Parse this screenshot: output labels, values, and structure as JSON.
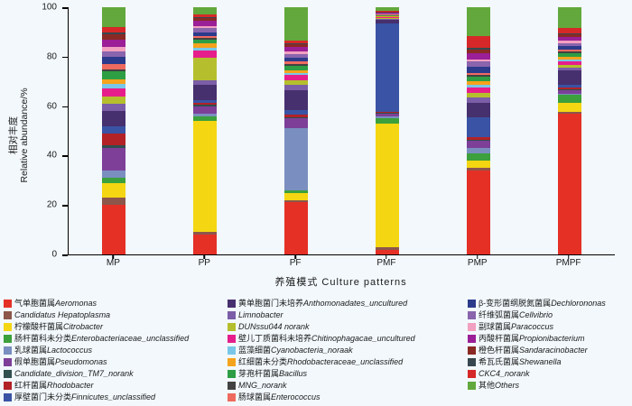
{
  "chart_data": {
    "type": "bar",
    "stacked": true,
    "title": "",
    "xlabel": "养殖模式  Culture patterns",
    "ylabel_zh": "相对丰度",
    "ylabel_en": "Relative abundance/%",
    "ylim": [
      0,
      100
    ],
    "yticks": [
      0,
      20,
      40,
      60,
      80,
      100
    ],
    "grid": false,
    "legend_position": "bottom",
    "legend_columns": [
      9,
      9,
      8
    ],
    "categories": [
      "MP",
      "PP",
      "PF",
      "PMF",
      "PMP",
      "PMPF"
    ],
    "series": [
      {
        "zh": "气单胞菌属",
        "en": "Aeromonas",
        "color": "#e53026",
        "values": [
          20,
          8,
          21,
          2,
          34,
          57
        ]
      },
      {
        "zh": "",
        "en": "Candidatus Hepatoplasma",
        "color": "#8c564b",
        "values": [
          3,
          1,
          1,
          1,
          1,
          0.5
        ]
      },
      {
        "zh": "柠檬酸杆菌属",
        "en": "Citrobacter",
        "color": "#f5d612",
        "values": [
          6,
          45,
          3,
          50,
          3,
          4
        ]
      },
      {
        "zh": "肠杆菌科未分类",
        "en": "Enterobacteriaceae_unclassified",
        "color": "#3ca03c",
        "values": [
          2,
          2,
          1,
          2,
          3,
          3
        ]
      },
      {
        "zh": "乳球菌属",
        "en": "Lactococcus",
        "color": "#7a8fc0",
        "values": [
          3,
          1,
          25,
          1,
          2,
          0.5
        ]
      },
      {
        "zh": "假单胞菌属",
        "en": "Pseudomonas",
        "color": "#7d3f98",
        "values": [
          9,
          3,
          4,
          1,
          3,
          1.5
        ]
      },
      {
        "zh": "",
        "en": "Candidate_division_TM7_norank",
        "color": "#2f4f4f",
        "values": [
          1,
          0.5,
          0.5,
          0.3,
          0.5,
          0.3
        ]
      },
      {
        "zh": "红杆菌属",
        "en": "Rhodobacter",
        "color": "#b22227",
        "values": [
          5,
          1,
          1,
          0.3,
          1,
          0.7
        ]
      },
      {
        "zh": "厚壁菌门未分类",
        "en": "Finnicutes_unclassified",
        "color": "#3a53a4",
        "values": [
          3,
          1,
          2,
          36,
          8,
          1
        ]
      },
      {
        "zh": "黄单胞菌门未培养",
        "en": "Anthomonadates_uncultured",
        "color": "#46306e",
        "values": [
          6,
          6,
          8,
          1.5,
          6,
          6
        ]
      },
      {
        "zh": "",
        "en": "Limnobacter",
        "color": "#7b5ea7",
        "values": [
          3,
          2,
          2,
          0.3,
          2,
          1
        ]
      },
      {
        "zh": "",
        "en": "DUNssu044 norank",
        "color": "#b5bf2d",
        "values": [
          3,
          9,
          2,
          0.3,
          2,
          1
        ]
      },
      {
        "zh": "壁儿丁质菌科未培养",
        "en": "Chitinophagacae_uncultured",
        "color": "#e61e8c",
        "values": [
          3,
          3,
          2,
          0.3,
          2,
          1.5
        ]
      },
      {
        "zh": "蓝藻细菌",
        "en": "Cyanobacteria_noraak",
        "color": "#79c7e8",
        "values": [
          2,
          1,
          1,
          0.2,
          1,
          1
        ]
      },
      {
        "zh": "红细菌未分类",
        "en": "Rhodobacteraceae_unclassified",
        "color": "#f5a31c",
        "values": [
          2,
          2,
          1,
          0.2,
          1.5,
          1
        ]
      },
      {
        "zh": "芽孢杆菌属",
        "en": "Bacillus",
        "color": "#2e9e44",
        "values": [
          3,
          1.5,
          2,
          0.2,
          2,
          1.5
        ]
      },
      {
        "zh": "",
        "en": "MNG_norank",
        "color": "#424242",
        "values": [
          1,
          0.5,
          0.5,
          0.2,
          0.5,
          0.5
        ]
      },
      {
        "zh": "肠球菌属",
        "en": "Enterococcus",
        "color": "#ee6a5f",
        "values": [
          2,
          1,
          1,
          0.2,
          1,
          1
        ]
      },
      {
        "zh": "β-变形菌纲脱氮菌属",
        "en": "Dechlorononas",
        "color": "#2c3a8c",
        "values": [
          3,
          1.5,
          1.5,
          0.2,
          2.5,
          1.5
        ]
      },
      {
        "zh": "纤维弧菌属",
        "en": "Cellvibrio",
        "color": "#8a64ad",
        "values": [
          2,
          1.5,
          1.5,
          0.2,
          2,
          1
        ]
      },
      {
        "zh": "副球菌属",
        "en": "Paracoccus",
        "color": "#f2a0c0",
        "values": [
          2,
          1,
          1,
          0.2,
          1,
          1
        ]
      },
      {
        "zh": "丙酸杆菌属",
        "en": "Propionibacterium",
        "color": "#9b1f96",
        "values": [
          3,
          2,
          2,
          0.3,
          2.5,
          1.5
        ]
      },
      {
        "zh": "橙色杆菌属",
        "en": "Sandaracinobacter",
        "color": "#8a2a24",
        "values": [
          2,
          1,
          1,
          0.2,
          1.5,
          1
        ]
      },
      {
        "zh": "希瓦氏菌属",
        "en": "Shewanella",
        "color": "#37474f",
        "values": [
          1,
          0.5,
          0.5,
          0.2,
          0.5,
          0.5
        ]
      },
      {
        "zh": "",
        "en": "CKC4_norank",
        "color": "#d62828",
        "values": [
          2,
          1,
          1,
          0.4,
          5,
          2
        ]
      },
      {
        "zh": "其他",
        "en": "Others",
        "color": "#63a83c",
        "values": [
          8,
          3,
          13.5,
          1.3,
          11.5,
          8.5
        ]
      }
    ]
  }
}
